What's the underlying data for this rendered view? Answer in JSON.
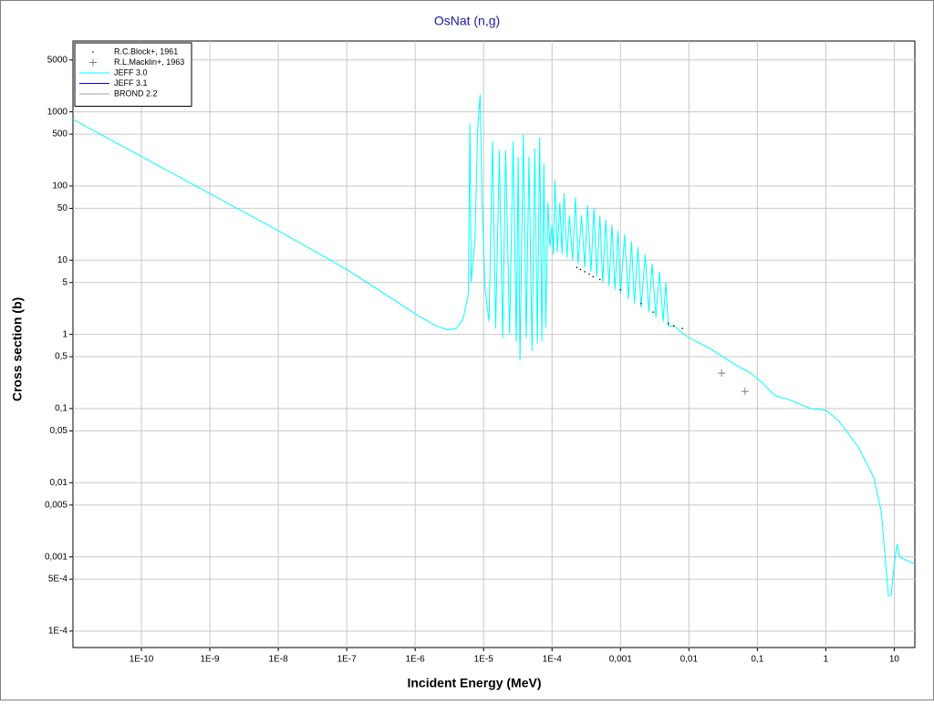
{
  "chart_data": {
    "type": "line",
    "title": "OsNat (n,g)",
    "xlabel": "Incident Energy (MeV)",
    "ylabel": "Cross section (b)",
    "xlog": true,
    "ylog": true,
    "grid": true,
    "legend": "upper left",
    "xlim": [
      1e-11,
      20
    ],
    "ylim": [
      6e-05,
      9000
    ],
    "xticks": [
      {
        "value": 1e-10,
        "label": "1E-10"
      },
      {
        "value": 1e-09,
        "label": "1E-9"
      },
      {
        "value": 1e-08,
        "label": "1E-8"
      },
      {
        "value": 1e-07,
        "label": "1E-7"
      },
      {
        "value": 1e-06,
        "label": "1E-6"
      },
      {
        "value": 1e-05,
        "label": "1E-5"
      },
      {
        "value": 0.0001,
        "label": "1E-4"
      },
      {
        "value": 0.001,
        "label": "0,001"
      },
      {
        "value": 0.01,
        "label": "0,01"
      },
      {
        "value": 0.1,
        "label": "0,1"
      },
      1,
      10
    ],
    "yticks": [
      {
        "value": 0.0001,
        "label": "1E-4"
      },
      {
        "value": 0.0005,
        "label": "5E-4"
      },
      {
        "value": 0.001,
        "label": "0,001"
      },
      {
        "value": 0.005,
        "label": "0,005"
      },
      {
        "value": 0.01,
        "label": "0,01"
      },
      {
        "value": 0.05,
        "label": "0,05"
      },
      {
        "value": 0.1,
        "label": "0,1"
      },
      {
        "value": 0.5,
        "label": "0,5"
      },
      1,
      5,
      10,
      50,
      100,
      500,
      1000,
      5000
    ],
    "series": [
      {
        "name": "R.C.Block+, 1961",
        "type": "scatter",
        "marker": "dot",
        "color": "#000000",
        "x": [
          0.00023,
          0.00026,
          0.0003,
          0.00035,
          0.0004,
          0.0005,
          0.001,
          0.002,
          0.003,
          0.005,
          0.006,
          0.008
        ],
        "values": [
          8,
          7.5,
          7,
          6.5,
          6,
          5.5,
          4,
          2.6,
          2,
          1.4,
          1.3,
          1.2
        ]
      },
      {
        "name": "R.L.Macklin+, 1963",
        "type": "scatter",
        "marker": "plus",
        "color": "#808080",
        "x": [
          0.03,
          0.066
        ],
        "values": [
          0.3,
          0.17
        ]
      },
      {
        "name": "JEFF 3.0",
        "type": "line",
        "color": "#00ffff",
        "x": [
          1e-11,
          1e-10,
          1e-09,
          1e-08,
          1e-07,
          1e-06,
          2e-06,
          3e-06,
          4e-06,
          5e-06,
          6e-06,
          6.3e-06,
          6.6e-06,
          7.5e-06,
          8.2e-06,
          8.9e-06,
          9.5e-06,
          1.05e-05,
          1.2e-05,
          1.35e-05,
          1.5e-05,
          1.7e-05,
          1.9e-05,
          2.1e-05,
          2.4e-05,
          2.7e-05,
          3e-05,
          3.2e-05,
          3.4e-05,
          3.8e-05,
          4.2e-05,
          4.6e-05,
          5.1e-05,
          5.6e-05,
          6.1e-05,
          6.6e-05,
          7.1e-05,
          7.6e-05,
          8.1e-05,
          8.7e-05,
          9.3e-05,
          0.0001,
          0.000105,
          0.00011,
          0.00012,
          0.00013,
          0.00014,
          0.00015,
          0.000165,
          0.00018,
          0.0002,
          0.00022,
          0.00024,
          0.00027,
          0.0003,
          0.00033,
          0.00037,
          0.00041,
          0.00045,
          0.0005,
          0.00055,
          0.00061,
          0.00068,
          0.00075,
          0.00083,
          0.00092,
          0.001,
          0.00115,
          0.0013,
          0.00145,
          0.0016,
          0.0018,
          0.002,
          0.0023,
          0.0026,
          0.0029,
          0.0033,
          0.0037,
          0.0042,
          0.0046,
          0.005,
          0.006,
          0.008,
          0.01,
          0.02,
          0.05,
          0.08,
          0.12,
          0.18,
          0.3,
          0.6,
          1,
          1.5,
          2,
          3,
          5,
          6.5,
          7.5,
          8.2,
          9,
          10,
          11,
          12,
          15,
          20
        ],
        "values": [
          790,
          250,
          79,
          25,
          7.5,
          1.9,
          1.3,
          1.15,
          1.2,
          1.6,
          3.5,
          700,
          5,
          20,
          600,
          1700,
          60,
          4,
          1.5,
          400,
          1.2,
          300,
          0.9,
          300,
          1,
          400,
          0.8,
          250,
          0.45,
          500,
          0.9,
          250,
          0.6,
          320,
          0.75,
          450,
          0.8,
          200,
          1.2,
          60,
          15,
          30,
          12,
          120,
          13,
          60,
          12,
          80,
          11,
          40,
          10,
          70,
          9,
          40,
          8,
          55,
          7,
          50,
          6,
          40,
          5,
          35,
          4.5,
          30,
          4,
          25,
          3.5,
          22,
          3,
          18,
          2.6,
          15,
          2.3,
          12,
          2,
          9,
          1.7,
          7,
          1.5,
          5,
          1.3,
          1.3,
          1.05,
          0.9,
          0.65,
          0.38,
          0.3,
          0.22,
          0.15,
          0.13,
          0.1,
          0.095,
          0.07,
          0.05,
          0.03,
          0.012,
          0.004,
          0.0008,
          0.0003,
          0.0003,
          0.0008,
          0.0015,
          0.001,
          0.0009,
          0.0008
        ]
      },
      {
        "name": "JEFF 3.1",
        "type": "line",
        "color": "#0000ff",
        "x": [],
        "values": []
      },
      {
        "name": "BROND 2.2",
        "type": "line",
        "color": "#a0a0a0",
        "x": [],
        "values": []
      }
    ]
  }
}
